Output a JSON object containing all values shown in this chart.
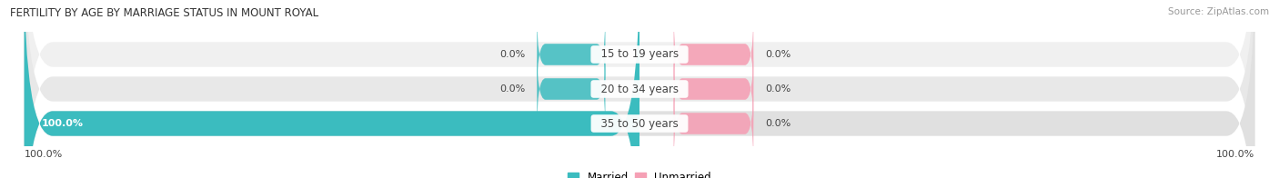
{
  "title": "FERTILITY BY AGE BY MARRIAGE STATUS IN MOUNT ROYAL",
  "source": "Source: ZipAtlas.com",
  "categories": [
    "15 to 19 years",
    "20 to 34 years",
    "35 to 50 years"
  ],
  "married_pct": [
    0.0,
    0.0,
    100.0
  ],
  "unmarried_pct": [
    0.0,
    0.0,
    0.0
  ],
  "married_color": "#3bbcbf",
  "unmarried_color": "#f5a0b5",
  "row_bg_colors": [
    "#f0f0f0",
    "#e8e8e8",
    "#e0e0e0"
  ],
  "label_color": "#444444",
  "title_color": "#333333",
  "source_color": "#999999",
  "bottom_left_label": "100.0%",
  "bottom_right_label": "100.0%",
  "figsize": [
    14.06,
    1.96
  ],
  "dpi": 100
}
